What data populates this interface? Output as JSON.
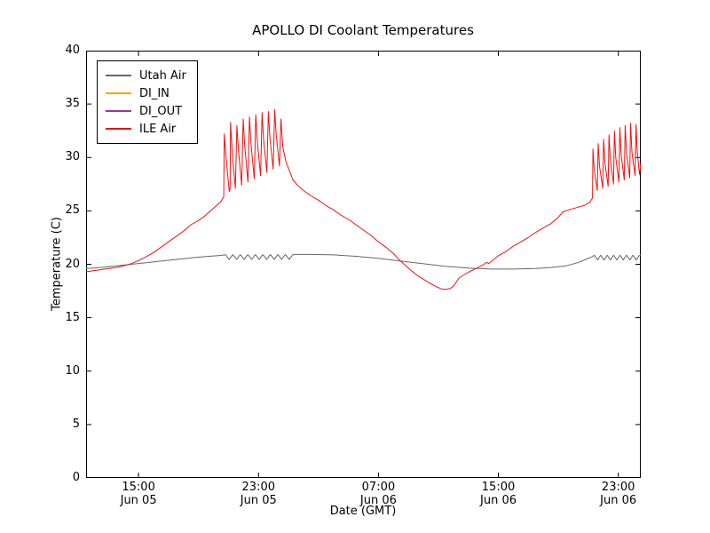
{
  "chart_data": {
    "type": "line",
    "title": "APOLLO DI Coolant Temperatures",
    "xlabel": "Date (GMT)",
    "ylabel": "Temperature (C)",
    "grid": false,
    "legend_position": "upper left",
    "axis_color": "#000000",
    "background": "#ffffff",
    "ylim": [
      0,
      40
    ],
    "xlim_hours": [
      11.5,
      48.5
    ],
    "y_ticks": [
      0,
      5,
      10,
      15,
      20,
      25,
      30,
      35,
      40
    ],
    "x_ticks": [
      {
        "hour": 15,
        "time": "15:00",
        "date": "Jun 05"
      },
      {
        "hour": 23,
        "time": "23:00",
        "date": "Jun 05"
      },
      {
        "hour": 31,
        "time": "07:00",
        "date": "Jun 06"
      },
      {
        "hour": 39,
        "time": "15:00",
        "date": "Jun 06"
      },
      {
        "hour": 47,
        "time": "23:00",
        "date": "Jun 06"
      }
    ],
    "series": [
      {
        "name": "Utah Air",
        "color": "#666666",
        "points": [
          [
            11.5,
            19.6
          ],
          [
            12.5,
            19.7
          ],
          [
            13.5,
            19.85
          ],
          [
            14.5,
            20.0
          ],
          [
            15.5,
            20.15
          ],
          [
            16.5,
            20.3
          ],
          [
            17.5,
            20.45
          ],
          [
            18.5,
            20.6
          ],
          [
            19.5,
            20.72
          ],
          [
            20.4,
            20.82
          ],
          [
            20.8,
            20.9
          ],
          [
            21.05,
            20.45
          ],
          [
            21.25,
            20.85
          ],
          [
            21.3,
            20.9
          ],
          [
            21.55,
            20.45
          ],
          [
            21.75,
            20.85
          ],
          [
            21.8,
            20.9
          ],
          [
            22.05,
            20.45
          ],
          [
            22.25,
            20.85
          ],
          [
            22.3,
            20.9
          ],
          [
            22.55,
            20.45
          ],
          [
            22.75,
            20.85
          ],
          [
            22.8,
            20.9
          ],
          [
            23.05,
            20.45
          ],
          [
            23.25,
            20.85
          ],
          [
            23.3,
            20.9
          ],
          [
            23.55,
            20.45
          ],
          [
            23.75,
            20.85
          ],
          [
            23.8,
            20.9
          ],
          [
            24.05,
            20.45
          ],
          [
            24.25,
            20.85
          ],
          [
            24.3,
            20.9
          ],
          [
            24.55,
            20.45
          ],
          [
            24.75,
            20.85
          ],
          [
            24.8,
            20.9
          ],
          [
            25.05,
            20.45
          ],
          [
            25.25,
            20.85
          ],
          [
            25.35,
            20.92
          ],
          [
            26.5,
            20.92
          ],
          [
            28,
            20.88
          ],
          [
            29.5,
            20.75
          ],
          [
            31,
            20.55
          ],
          [
            32.5,
            20.3
          ],
          [
            34,
            20.05
          ],
          [
            35.5,
            19.8
          ],
          [
            37,
            19.65
          ],
          [
            38.5,
            19.55
          ],
          [
            40,
            19.55
          ],
          [
            41.5,
            19.6
          ],
          [
            42.5,
            19.7
          ],
          [
            43.5,
            19.85
          ],
          [
            44.3,
            20.15
          ],
          [
            44.9,
            20.5
          ],
          [
            45.3,
            20.72
          ],
          [
            45.4,
            20.85
          ],
          [
            45.62,
            20.4
          ],
          [
            45.8,
            20.8
          ],
          [
            45.83,
            20.85
          ],
          [
            46.05,
            20.4
          ],
          [
            46.23,
            20.8
          ],
          [
            46.26,
            20.85
          ],
          [
            46.48,
            20.4
          ],
          [
            46.66,
            20.8
          ],
          [
            46.69,
            20.85
          ],
          [
            46.91,
            20.4
          ],
          [
            47.09,
            20.8
          ],
          [
            47.12,
            20.85
          ],
          [
            47.34,
            20.4
          ],
          [
            47.52,
            20.8
          ],
          [
            47.55,
            20.85
          ],
          [
            47.77,
            20.4
          ],
          [
            47.95,
            20.8
          ],
          [
            47.98,
            20.85
          ],
          [
            48.2,
            20.4
          ],
          [
            48.38,
            20.8
          ],
          [
            48.5,
            20.88
          ]
        ]
      },
      {
        "name": "DI_IN",
        "color": "#ffa500",
        "points": []
      },
      {
        "name": "DI_OUT",
        "color": "#993399",
        "points": []
      },
      {
        "name": "ILE Air",
        "color": "#ee1111",
        "points": [
          [
            11.5,
            19.3
          ],
          [
            12.0,
            19.4
          ],
          [
            12.5,
            19.5
          ],
          [
            13.0,
            19.6
          ],
          [
            13.5,
            19.7
          ],
          [
            14.0,
            19.85
          ],
          [
            14.5,
            20.05
          ],
          [
            15.0,
            20.35
          ],
          [
            15.5,
            20.7
          ],
          [
            16.0,
            21.1
          ],
          [
            16.5,
            21.6
          ],
          [
            17.0,
            22.1
          ],
          [
            17.5,
            22.6
          ],
          [
            18.0,
            23.1
          ],
          [
            18.5,
            23.7
          ],
          [
            19.0,
            24.1
          ],
          [
            19.4,
            24.5
          ],
          [
            19.8,
            25.0
          ],
          [
            20.2,
            25.5
          ],
          [
            20.5,
            25.9
          ],
          [
            20.68,
            26.3
          ],
          [
            20.72,
            32.2
          ],
          [
            20.82,
            30.3
          ],
          [
            21.05,
            26.8
          ],
          [
            21.1,
            27.0
          ],
          [
            21.14,
            33.3
          ],
          [
            21.24,
            30.6
          ],
          [
            21.46,
            27.1
          ],
          [
            21.56,
            33.0
          ],
          [
            21.66,
            30.8
          ],
          [
            21.88,
            27.4
          ],
          [
            21.98,
            33.6
          ],
          [
            22.08,
            31.1
          ],
          [
            22.3,
            27.7
          ],
          [
            22.4,
            33.8
          ],
          [
            22.5,
            31.3
          ],
          [
            22.72,
            28.0
          ],
          [
            22.82,
            34.0
          ],
          [
            22.92,
            31.5
          ],
          [
            23.14,
            28.3
          ],
          [
            23.24,
            34.2
          ],
          [
            23.34,
            31.7
          ],
          [
            23.56,
            28.6
          ],
          [
            23.66,
            34.3
          ],
          [
            23.76,
            31.9
          ],
          [
            23.98,
            28.9
          ],
          [
            24.08,
            34.5
          ],
          [
            24.18,
            32.1
          ],
          [
            24.4,
            29.2
          ],
          [
            24.5,
            33.6
          ],
          [
            24.62,
            31.0
          ],
          [
            24.85,
            29.5
          ],
          [
            25.0,
            29.0
          ],
          [
            25.3,
            27.9
          ],
          [
            25.6,
            27.4
          ],
          [
            26.0,
            26.9
          ],
          [
            26.5,
            26.4
          ],
          [
            27.0,
            26.0
          ],
          [
            27.5,
            25.5
          ],
          [
            28.0,
            25.1
          ],
          [
            28.5,
            24.6
          ],
          [
            29.0,
            24.2
          ],
          [
            29.5,
            23.7
          ],
          [
            30.0,
            23.2
          ],
          [
            30.5,
            22.7
          ],
          [
            31.0,
            22.1
          ],
          [
            31.5,
            21.6
          ],
          [
            32.0,
            21.0
          ],
          [
            32.4,
            20.4
          ],
          [
            32.8,
            19.9
          ],
          [
            33.2,
            19.4
          ],
          [
            33.6,
            18.95
          ],
          [
            34.0,
            18.6
          ],
          [
            34.4,
            18.25
          ],
          [
            34.8,
            17.95
          ],
          [
            35.2,
            17.7
          ],
          [
            35.5,
            17.65
          ],
          [
            35.8,
            17.75
          ],
          [
            36.0,
            17.95
          ],
          [
            36.2,
            18.35
          ],
          [
            36.4,
            18.75
          ],
          [
            36.7,
            19.0
          ],
          [
            37.0,
            19.25
          ],
          [
            37.5,
            19.6
          ],
          [
            38.0,
            19.95
          ],
          [
            38.2,
            20.2
          ],
          [
            38.35,
            20.05
          ],
          [
            38.6,
            20.35
          ],
          [
            39.0,
            20.8
          ],
          [
            39.5,
            21.2
          ],
          [
            40.0,
            21.7
          ],
          [
            40.5,
            22.1
          ],
          [
            41.0,
            22.5
          ],
          [
            41.5,
            23.0
          ],
          [
            42.0,
            23.4
          ],
          [
            42.5,
            23.8
          ],
          [
            43.0,
            24.4
          ],
          [
            43.3,
            24.9
          ],
          [
            43.7,
            25.1
          ],
          [
            44.2,
            25.3
          ],
          [
            44.7,
            25.5
          ],
          [
            45.1,
            25.8
          ],
          [
            45.28,
            26.2
          ],
          [
            45.31,
            30.8
          ],
          [
            45.4,
            28.8
          ],
          [
            45.6,
            26.9
          ],
          [
            45.66,
            31.3
          ],
          [
            45.75,
            29.2
          ],
          [
            45.96,
            27.1
          ],
          [
            46.02,
            31.7
          ],
          [
            46.11,
            29.5
          ],
          [
            46.32,
            27.3
          ],
          [
            46.38,
            32.1
          ],
          [
            46.47,
            29.8
          ],
          [
            46.68,
            27.5
          ],
          [
            46.74,
            32.5
          ],
          [
            46.83,
            30.0
          ],
          [
            47.04,
            27.7
          ],
          [
            47.1,
            32.8
          ],
          [
            47.19,
            30.2
          ],
          [
            47.4,
            27.9
          ],
          [
            47.46,
            33.0
          ],
          [
            47.55,
            30.4
          ],
          [
            47.76,
            28.1
          ],
          [
            47.82,
            33.2
          ],
          [
            47.91,
            30.5
          ],
          [
            48.12,
            28.3
          ],
          [
            48.18,
            33.1
          ],
          [
            48.27,
            30.4
          ],
          [
            48.42,
            28.4
          ],
          [
            48.5,
            29.5
          ]
        ]
      }
    ]
  }
}
